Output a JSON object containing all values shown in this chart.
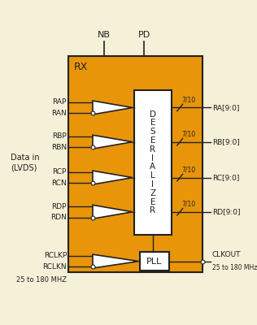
{
  "bg_color": "#f5f0d8",
  "outer_box_color": "#f5f0d8",
  "rx_box_color": "#e8950a",
  "rx_box_edge": "#222222",
  "deser_box_color": "#ffffff",
  "deser_box_edge": "#222222",
  "pll_box_color": "#ffffff",
  "pll_box_edge": "#222222",
  "triangle_fill": "#ffffff",
  "triangle_edge": "#222222",
  "line_color": "#222222",
  "text_color": "#222222",
  "title_color": "#222222",
  "rx_label": "RX",
  "deser_label": "D\nE\nS\nE\nR\nI\nA\nL\nI\nZ\nE\nR",
  "pll_label": "PLL",
  "input_labels_p": [
    "RAP",
    "RBP",
    "RCP",
    "RDP"
  ],
  "input_labels_n": [
    "RAN",
    "RBN",
    "RCN",
    "RDN"
  ],
  "output_labels": [
    "RA[9:0]",
    "RB[9:0]",
    "RC[9:0]",
    "RD[9:0]"
  ],
  "bus_labels": [
    "7/10",
    "7/10",
    "7/10",
    "7/10"
  ],
  "clk_p": "RCLKP",
  "clk_n": "RCLKN",
  "clk_freq": "25 to 180 MHZ",
  "clkout": "CLKOUT",
  "clkout_freq": "25 to 180 MHz",
  "nb_label": "NB",
  "pd_label": "PD",
  "data_in_label": "Data in\n(LVDS)"
}
